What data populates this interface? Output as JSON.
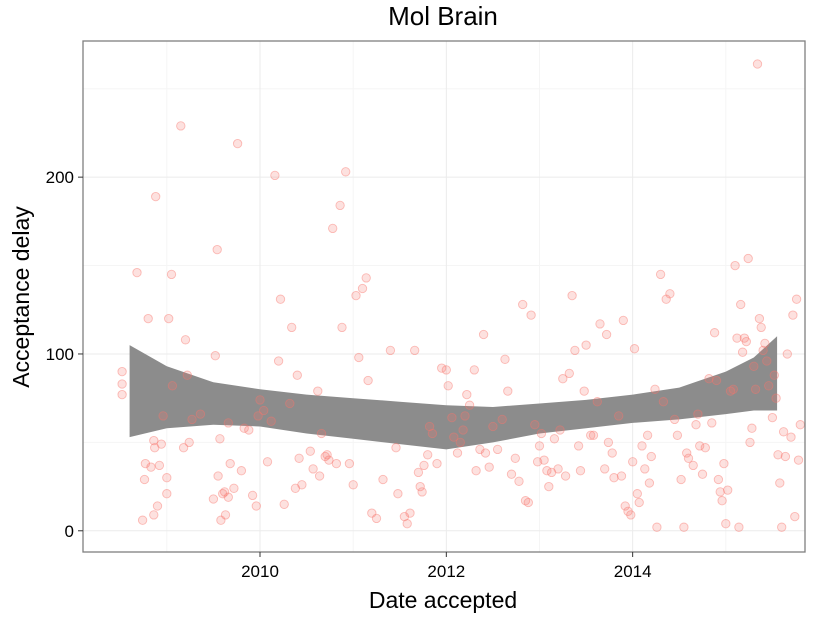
{
  "chart_data": {
    "type": "scatter",
    "title": "Mol Brain",
    "xlabel": "Date accepted",
    "ylabel": "Acceptance delay",
    "x_ticks": [
      2010,
      2012,
      2014
    ],
    "y_ticks": [
      0,
      100,
      200
    ],
    "xlim": [
      2008.1,
      2015.85
    ],
    "ylim": [
      -12,
      277
    ],
    "grid": true,
    "legend": "none",
    "colors": {
      "points": "#f8766d",
      "smooth_band": "#8c8c8c",
      "border": "#7f7f7f",
      "grid_major": "#ebebeb",
      "grid_minor": "#f5f5f5"
    },
    "points": [
      [
        2008.52,
        90
      ],
      [
        2008.52,
        83
      ],
      [
        2008.52,
        77
      ],
      [
        2008.68,
        146
      ],
      [
        2008.74,
        6
      ],
      [
        2008.76,
        29
      ],
      [
        2008.77,
        38
      ],
      [
        2008.8,
        120
      ],
      [
        2008.83,
        36
      ],
      [
        2008.86,
        9
      ],
      [
        2008.86,
        51
      ],
      [
        2008.87,
        47
      ],
      [
        2008.88,
        189
      ],
      [
        2008.9,
        14
      ],
      [
        2008.92,
        37
      ],
      [
        2008.94,
        49
      ],
      [
        2008.96,
        65
      ],
      [
        2009.0,
        30
      ],
      [
        2009.0,
        21
      ],
      [
        2009.02,
        120
      ],
      [
        2009.05,
        145
      ],
      [
        2009.06,
        82
      ],
      [
        2009.15,
        229
      ],
      [
        2009.18,
        47
      ],
      [
        2009.2,
        108
      ],
      [
        2009.22,
        88
      ],
      [
        2009.24,
        50
      ],
      [
        2009.27,
        63
      ],
      [
        2009.36,
        66
      ],
      [
        2009.5,
        18
      ],
      [
        2009.52,
        99
      ],
      [
        2009.54,
        159
      ],
      [
        2009.55,
        31
      ],
      [
        2009.57,
        52
      ],
      [
        2009.58,
        6
      ],
      [
        2009.6,
        21
      ],
      [
        2009.62,
        22
      ],
      [
        2009.63,
        9
      ],
      [
        2009.66,
        61
      ],
      [
        2009.66,
        19
      ],
      [
        2009.68,
        38
      ],
      [
        2009.72,
        24
      ],
      [
        2009.76,
        219
      ],
      [
        2009.8,
        34
      ],
      [
        2009.83,
        58
      ],
      [
        2009.88,
        57
      ],
      [
        2009.92,
        20
      ],
      [
        2009.96,
        14
      ],
      [
        2009.98,
        65
      ],
      [
        2010.0,
        74
      ],
      [
        2010.04,
        68
      ],
      [
        2010.08,
        39
      ],
      [
        2010.12,
        62
      ],
      [
        2010.16,
        201
      ],
      [
        2010.2,
        96
      ],
      [
        2010.22,
        131
      ],
      [
        2010.26,
        15
      ],
      [
        2010.32,
        72
      ],
      [
        2010.34,
        115
      ],
      [
        2010.38,
        24
      ],
      [
        2010.4,
        88
      ],
      [
        2010.42,
        41
      ],
      [
        2010.45,
        26
      ],
      [
        2010.54,
        45
      ],
      [
        2010.57,
        35
      ],
      [
        2010.62,
        79
      ],
      [
        2010.64,
        31
      ],
      [
        2010.66,
        55
      ],
      [
        2010.7,
        42
      ],
      [
        2010.72,
        43
      ],
      [
        2010.74,
        40
      ],
      [
        2010.78,
        171
      ],
      [
        2010.82,
        38
      ],
      [
        2010.86,
        184
      ],
      [
        2010.88,
        115
      ],
      [
        2010.92,
        203
      ],
      [
        2010.96,
        38
      ],
      [
        2011.0,
        26
      ],
      [
        2011.03,
        133
      ],
      [
        2011.06,
        98
      ],
      [
        2011.1,
        137
      ],
      [
        2011.14,
        143
      ],
      [
        2011.16,
        85
      ],
      [
        2011.2,
        10
      ],
      [
        2011.25,
        7
      ],
      [
        2011.32,
        29
      ],
      [
        2011.4,
        102
      ],
      [
        2011.46,
        47
      ],
      [
        2011.48,
        21
      ],
      [
        2011.55,
        8
      ],
      [
        2011.58,
        4
      ],
      [
        2011.61,
        10
      ],
      [
        2011.66,
        102
      ],
      [
        2011.7,
        33
      ],
      [
        2011.72,
        25
      ],
      [
        2011.74,
        22
      ],
      [
        2011.76,
        37
      ],
      [
        2011.8,
        43
      ],
      [
        2011.82,
        59
      ],
      [
        2011.85,
        55
      ],
      [
        2011.9,
        38
      ],
      [
        2011.95,
        92
      ],
      [
        2012.0,
        91
      ],
      [
        2012.02,
        82
      ],
      [
        2012.06,
        64
      ],
      [
        2012.08,
        53
      ],
      [
        2012.12,
        44
      ],
      [
        2012.15,
        50
      ],
      [
        2012.18,
        57
      ],
      [
        2012.2,
        65
      ],
      [
        2012.22,
        77
      ],
      [
        2012.25,
        71
      ],
      [
        2012.3,
        91
      ],
      [
        2012.32,
        34
      ],
      [
        2012.36,
        46
      ],
      [
        2012.4,
        111
      ],
      [
        2012.42,
        44
      ],
      [
        2012.46,
        36
      ],
      [
        2012.5,
        59
      ],
      [
        2012.55,
        46
      ],
      [
        2012.6,
        63
      ],
      [
        2012.63,
        97
      ],
      [
        2012.66,
        79
      ],
      [
        2012.7,
        32
      ],
      [
        2012.74,
        41
      ],
      [
        2012.78,
        28
      ],
      [
        2012.82,
        128
      ],
      [
        2012.85,
        17
      ],
      [
        2012.88,
        16
      ],
      [
        2012.91,
        122
      ],
      [
        2012.95,
        60
      ],
      [
        2012.98,
        39
      ],
      [
        2013.0,
        48
      ],
      [
        2013.02,
        55
      ],
      [
        2013.05,
        40
      ],
      [
        2013.08,
        34
      ],
      [
        2013.1,
        25
      ],
      [
        2013.13,
        33
      ],
      [
        2013.16,
        52
      ],
      [
        2013.2,
        35
      ],
      [
        2013.22,
        57
      ],
      [
        2013.25,
        86
      ],
      [
        2013.28,
        31
      ],
      [
        2013.32,
        89
      ],
      [
        2013.35,
        133
      ],
      [
        2013.38,
        102
      ],
      [
        2013.42,
        48
      ],
      [
        2013.44,
        34
      ],
      [
        2013.48,
        79
      ],
      [
        2013.5,
        105
      ],
      [
        2013.55,
        54
      ],
      [
        2013.58,
        54
      ],
      [
        2013.62,
        73
      ],
      [
        2013.65,
        117
      ],
      [
        2013.7,
        35
      ],
      [
        2013.72,
        111
      ],
      [
        2013.74,
        50
      ],
      [
        2013.78,
        44
      ],
      [
        2013.8,
        30
      ],
      [
        2013.85,
        65
      ],
      [
        2013.88,
        31
      ],
      [
        2013.9,
        119
      ],
      [
        2013.92,
        14
      ],
      [
        2013.95,
        11
      ],
      [
        2013.98,
        9
      ],
      [
        2014.0,
        39
      ],
      [
        2014.02,
        103
      ],
      [
        2014.05,
        21
      ],
      [
        2014.07,
        16
      ],
      [
        2014.1,
        48
      ],
      [
        2014.13,
        35
      ],
      [
        2014.16,
        54
      ],
      [
        2014.18,
        27
      ],
      [
        2014.2,
        42
      ],
      [
        2014.24,
        80
      ],
      [
        2014.26,
        2
      ],
      [
        2014.3,
        145
      ],
      [
        2014.33,
        73
      ],
      [
        2014.36,
        131
      ],
      [
        2014.4,
        134
      ],
      [
        2014.45,
        63
      ],
      [
        2014.48,
        54
      ],
      [
        2014.52,
        29
      ],
      [
        2014.55,
        2
      ],
      [
        2014.58,
        44
      ],
      [
        2014.6,
        41
      ],
      [
        2014.65,
        37
      ],
      [
        2014.68,
        60
      ],
      [
        2014.7,
        66
      ],
      [
        2014.72,
        48
      ],
      [
        2014.75,
        32
      ],
      [
        2014.78,
        47
      ],
      [
        2014.82,
        86
      ],
      [
        2014.85,
        61
      ],
      [
        2014.88,
        112
      ],
      [
        2014.9,
        85
      ],
      [
        2014.92,
        29
      ],
      [
        2014.94,
        22
      ],
      [
        2014.96,
        17
      ],
      [
        2014.98,
        38
      ],
      [
        2015.0,
        4
      ],
      [
        2015.02,
        23
      ],
      [
        2015.05,
        79
      ],
      [
        2015.08,
        80
      ],
      [
        2015.1,
        150
      ],
      [
        2015.12,
        109
      ],
      [
        2015.14,
        2
      ],
      [
        2015.16,
        128
      ],
      [
        2015.18,
        101
      ],
      [
        2015.2,
        109
      ],
      [
        2015.22,
        107
      ],
      [
        2015.24,
        154
      ],
      [
        2015.26,
        50
      ],
      [
        2015.28,
        58
      ],
      [
        2015.3,
        93
      ],
      [
        2015.32,
        80
      ],
      [
        2015.34,
        264
      ],
      [
        2015.36,
        120
      ],
      [
        2015.38,
        115
      ],
      [
        2015.4,
        102
      ],
      [
        2015.42,
        106
      ],
      [
        2015.44,
        96
      ],
      [
        2015.46,
        82
      ],
      [
        2015.5,
        64
      ],
      [
        2015.52,
        88
      ],
      [
        2015.54,
        75
      ],
      [
        2015.56,
        43
      ],
      [
        2015.58,
        27
      ],
      [
        2015.6,
        2
      ],
      [
        2015.62,
        56
      ],
      [
        2015.64,
        42
      ],
      [
        2015.66,
        100
      ],
      [
        2015.7,
        53
      ],
      [
        2015.72,
        122
      ],
      [
        2015.74,
        8
      ],
      [
        2015.76,
        131
      ],
      [
        2015.78,
        40
      ],
      [
        2015.8,
        60
      ]
    ],
    "smooth_upper": [
      [
        2008.6,
        105
      ],
      [
        2009.0,
        93
      ],
      [
        2009.5,
        84
      ],
      [
        2010.0,
        80
      ],
      [
        2010.5,
        77
      ],
      [
        2011.0,
        75
      ],
      [
        2011.5,
        73
      ],
      [
        2012.0,
        71
      ],
      [
        2012.5,
        70
      ],
      [
        2013.0,
        72
      ],
      [
        2013.5,
        74
      ],
      [
        2014.0,
        77
      ],
      [
        2014.5,
        81
      ],
      [
        2015.0,
        90
      ],
      [
        2015.3,
        98
      ],
      [
        2015.55,
        110
      ]
    ],
    "smooth_lower": [
      [
        2008.6,
        53
      ],
      [
        2009.0,
        58
      ],
      [
        2009.5,
        60
      ],
      [
        2010.0,
        59
      ],
      [
        2010.5,
        55
      ],
      [
        2011.0,
        52
      ],
      [
        2011.5,
        49
      ],
      [
        2012.0,
        46
      ],
      [
        2012.5,
        50
      ],
      [
        2013.0,
        55
      ],
      [
        2013.5,
        58
      ],
      [
        2014.0,
        61
      ],
      [
        2014.5,
        63
      ],
      [
        2015.0,
        66
      ],
      [
        2015.3,
        68
      ],
      [
        2015.55,
        68
      ]
    ]
  }
}
